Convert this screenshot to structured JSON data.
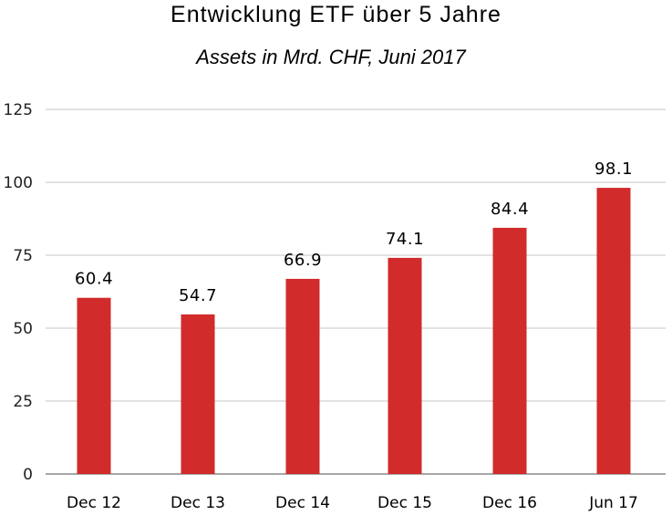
{
  "chart_data": {
    "type": "bar",
    "title": "Entwicklung ETF über 5 Jahre",
    "subtitle": "Assets in Mrd. CHF, Juni 2017",
    "xlabel": "",
    "ylabel": "",
    "categories": [
      "Dec 12",
      "Dec 13",
      "Dec 14",
      "Dec 15",
      "Dec 16",
      "Jun 17"
    ],
    "values": [
      60.4,
      54.7,
      66.9,
      74.1,
      84.4,
      98.1
    ],
    "data_labels": [
      "60.4",
      "54.7",
      "66.9",
      "74.1",
      "84.4",
      "98.1"
    ],
    "ylim": [
      0,
      125
    ],
    "yticks": [
      0,
      25,
      50,
      75,
      100,
      125
    ],
    "ytick_labels": [
      "0",
      "25",
      "50",
      "75",
      "100",
      "125"
    ],
    "grid": true,
    "legend": "none",
    "bar_color": "#d12b2b",
    "grid_color": "#c4c4c4"
  }
}
